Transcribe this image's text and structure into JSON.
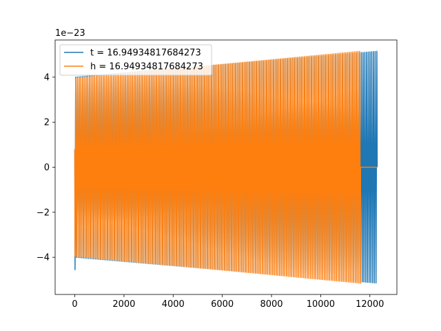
{
  "chart_data": {
    "type": "line",
    "title": "",
    "xlabel": "",
    "ylabel": "",
    "offset_text": "1e−23",
    "xlim": [
      -800,
      13100
    ],
    "ylim": [
      -5.65,
      5.65
    ],
    "x_ticks": [
      0,
      2000,
      4000,
      6000,
      8000,
      10000,
      12000
    ],
    "x_tick_labels": [
      "0",
      "2000",
      "4000",
      "6000",
      "8000",
      "10000",
      "12000"
    ],
    "y_ticks": [
      -4,
      -2,
      0,
      2,
      4
    ],
    "y_tick_labels": [
      "−4",
      "−2",
      "0",
      "2",
      "4"
    ],
    "grid": false,
    "legend": {
      "placement": "upper-left"
    },
    "series": [
      {
        "name": "t = 16.94934817684273",
        "color": "#1f77b4",
        "x_start": 0,
        "x_end": 12300,
        "start_amplitude": 4.0,
        "end_amplitude": 5.15,
        "initial_min": -4.55,
        "oscillation_period": 70,
        "final_value": 0
      },
      {
        "name": "h = 16.94934817684273",
        "color": "#ff7f0e",
        "x_start": 0,
        "x_end": 11620,
        "start_amplitude": 3.95,
        "end_amplitude": 5.15,
        "initial_min": -3.95,
        "oscillation_period": 70,
        "tail_x_end": 12300,
        "final_value": 0
      }
    ]
  }
}
